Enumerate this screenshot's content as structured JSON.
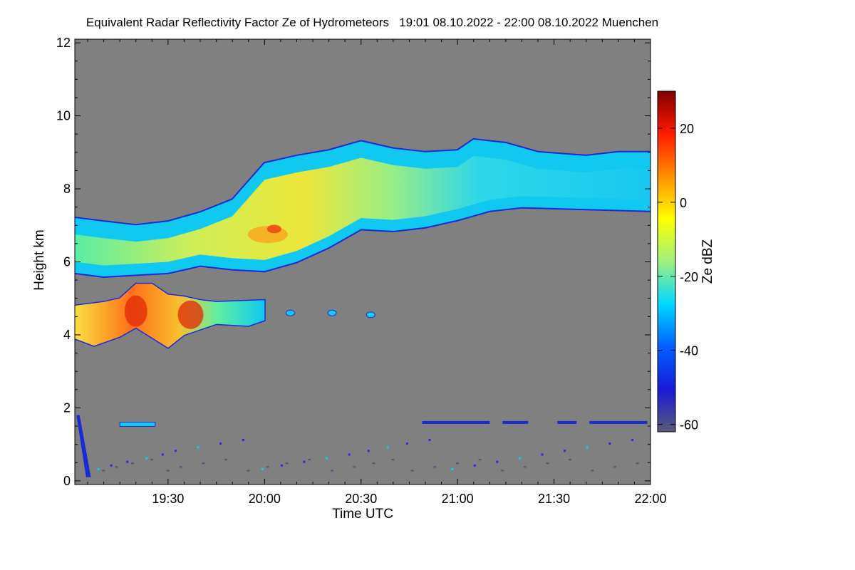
{
  "chart_data": {
    "type": "heatmap",
    "title": "Equivalent Radar Reflectivity Factor Ze of Hydrometeors",
    "period": "19:01 08.10.2022 - 22:00 08.10.2022",
    "location": "Muenchen",
    "xlabel": "Time UTC",
    "ylabel": "Height km",
    "x_ticks": [
      "19:30",
      "20:00",
      "20:30",
      "21:00",
      "21:30",
      "22:00"
    ],
    "x_tick_minutes": [
      1170,
      1200,
      1230,
      1260,
      1290,
      1320
    ],
    "xlim_minutes": [
      1141,
      1320
    ],
    "y_ticks": [
      0,
      2,
      4,
      6,
      8,
      10,
      12
    ],
    "ylim": [
      -0.1,
      12.1
    ],
    "colorbar": {
      "label": "Ze dBZ",
      "ticks": [
        20,
        0,
        -20,
        -40,
        -60
      ],
      "range": [
        -62,
        30
      ],
      "colors": [
        "#5a5a78",
        "#1a1ad8",
        "#0060ff",
        "#00d8ff",
        "#a0f080",
        "#ffff00",
        "#ff9000",
        "#ff1a00",
        "#800000"
      ]
    },
    "background_color": "#808080",
    "features": {
      "upper_cloud_top": [
        [
          1141,
          7.2
        ],
        [
          1150,
          7.1
        ],
        [
          1160,
          7.0
        ],
        [
          1170,
          7.1
        ],
        [
          1180,
          7.35
        ],
        [
          1190,
          7.7
        ],
        [
          1200,
          8.7
        ],
        [
          1210,
          8.9
        ],
        [
          1220,
          9.05
        ],
        [
          1230,
          9.3
        ],
        [
          1240,
          9.1
        ],
        [
          1250,
          9.0
        ],
        [
          1260,
          9.05
        ],
        [
          1265,
          9.35
        ],
        [
          1275,
          9.25
        ],
        [
          1285,
          9.0
        ],
        [
          1300,
          8.9
        ],
        [
          1310,
          9.0
        ],
        [
          1320,
          9.0
        ]
      ],
      "upper_cloud_base": [
        [
          1141,
          5.7
        ],
        [
          1150,
          5.6
        ],
        [
          1160,
          5.65
        ],
        [
          1170,
          5.7
        ],
        [
          1180,
          5.9
        ],
        [
          1190,
          5.8
        ],
        [
          1200,
          5.75
        ],
        [
          1210,
          6.0
        ],
        [
          1220,
          6.4
        ],
        [
          1230,
          6.9
        ],
        [
          1240,
          6.85
        ],
        [
          1250,
          6.95
        ],
        [
          1260,
          7.15
        ],
        [
          1270,
          7.4
        ],
        [
          1280,
          7.5
        ],
        [
          1300,
          7.45
        ],
        [
          1320,
          7.4
        ]
      ],
      "lower_cloud_top": [
        [
          1141,
          4.8
        ],
        [
          1150,
          4.9
        ],
        [
          1155,
          5.0
        ],
        [
          1160,
          5.4
        ],
        [
          1165,
          5.4
        ],
        [
          1170,
          5.1
        ],
        [
          1175,
          5.05
        ],
        [
          1180,
          4.95
        ],
        [
          1185,
          4.9
        ],
        [
          1200,
          4.95
        ]
      ],
      "lower_cloud_base": [
        [
          1141,
          3.9
        ],
        [
          1147,
          3.7
        ],
        [
          1155,
          3.95
        ],
        [
          1160,
          4.2
        ],
        [
          1170,
          3.65
        ],
        [
          1175,
          4.0
        ],
        [
          1185,
          4.3
        ],
        [
          1195,
          4.25
        ],
        [
          1200,
          4.4
        ]
      ],
      "low_layer_height_km": 1.6
    }
  }
}
